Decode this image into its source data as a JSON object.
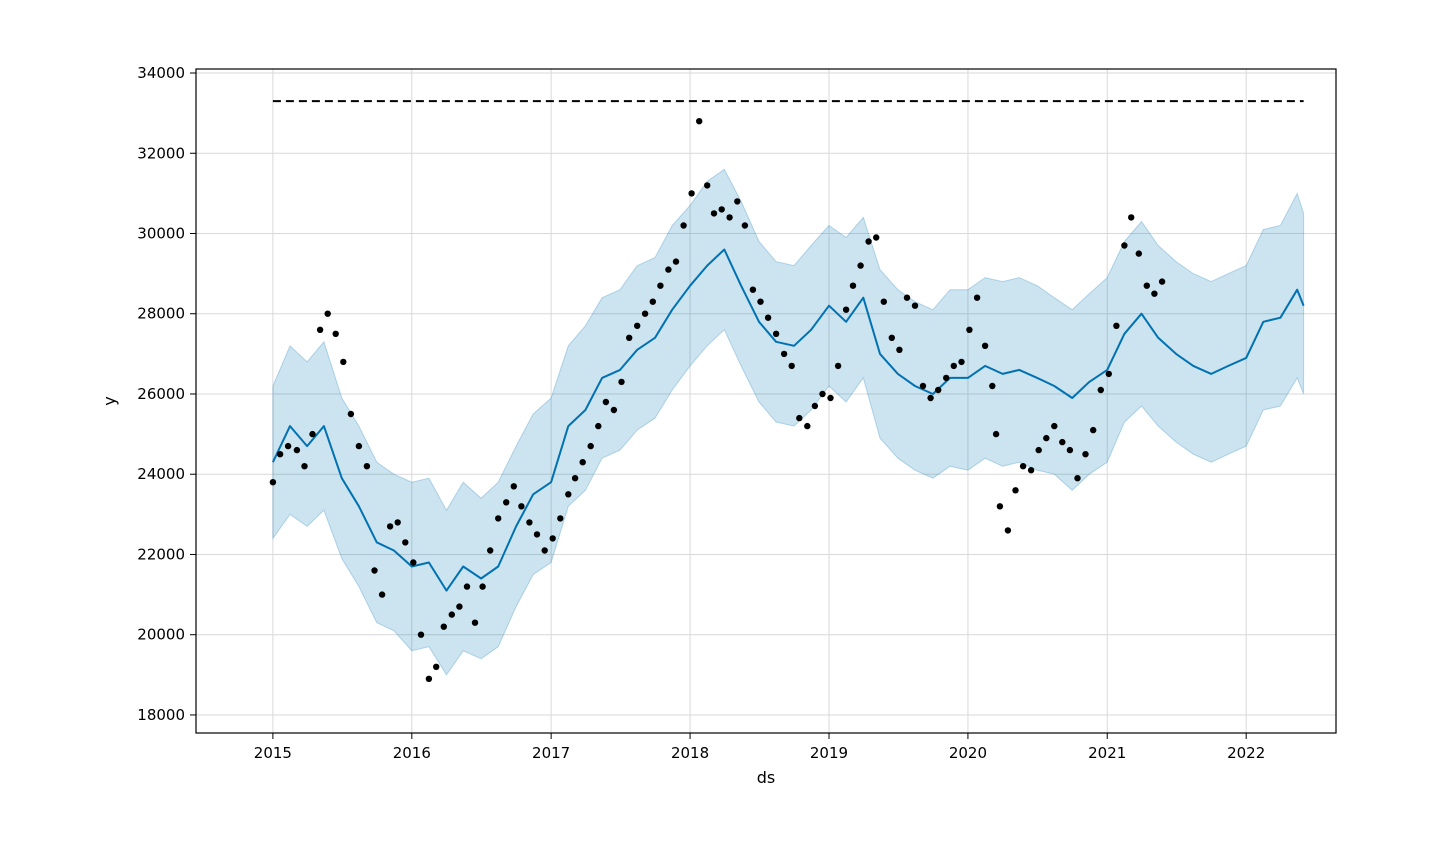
{
  "chart_data": {
    "type": "line",
    "title": "",
    "xlabel": "ds",
    "ylabel": "y",
    "xlim": [
      "2014-06-13",
      "2022-08-25"
    ],
    "ylim": [
      17550,
      34100
    ],
    "x_ticks": [
      "2015",
      "2016",
      "2017",
      "2018",
      "2019",
      "2020",
      "2021",
      "2022"
    ],
    "y_ticks": [
      18000,
      20000,
      22000,
      24000,
      26000,
      28000,
      30000,
      32000,
      34000
    ],
    "grid": true,
    "cap": {
      "value": 33300,
      "x_start": "2015-01-01",
      "x_end": "2022-06-01",
      "style": "dashed",
      "color": "#000000"
    },
    "colors": {
      "forecast_line": "#0072b2",
      "uncertainty_band": "#0072b2",
      "observed_points": "#000000"
    },
    "forecast": {
      "name": "yhat",
      "x": [
        "2015-01-01",
        "2015-02-15",
        "2015-04-01",
        "2015-05-15",
        "2015-07-01",
        "2015-08-15",
        "2015-10-01",
        "2015-11-15",
        "2016-01-01",
        "2016-02-15",
        "2016-04-01",
        "2016-05-15",
        "2016-07-01",
        "2016-08-15",
        "2016-10-01",
        "2016-11-15",
        "2017-01-01",
        "2017-02-15",
        "2017-04-01",
        "2017-05-15",
        "2017-07-01",
        "2017-08-15",
        "2017-10-01",
        "2017-11-15",
        "2018-01-01",
        "2018-02-15",
        "2018-04-01",
        "2018-05-15",
        "2018-07-01",
        "2018-08-15",
        "2018-10-01",
        "2018-11-15",
        "2019-01-01",
        "2019-02-15",
        "2019-04-01",
        "2019-05-15",
        "2019-07-01",
        "2019-08-15",
        "2019-10-01",
        "2019-11-15",
        "2020-01-01",
        "2020-02-15",
        "2020-04-01",
        "2020-05-15",
        "2020-07-01",
        "2020-08-15",
        "2020-10-01",
        "2020-11-15",
        "2021-01-01",
        "2021-02-15",
        "2021-04-01",
        "2021-05-15",
        "2021-07-01",
        "2021-08-15",
        "2021-10-01",
        "2021-11-15",
        "2022-01-01",
        "2022-02-15",
        "2022-04-01",
        "2022-05-15",
        "2022-06-01"
      ],
      "yhat": [
        24300,
        25200,
        24700,
        25200,
        23900,
        23200,
        22300,
        22100,
        21700,
        21800,
        21100,
        21700,
        21400,
        21700,
        22700,
        23500,
        23800,
        25200,
        25600,
        26400,
        26600,
        27100,
        27400,
        28100,
        28700,
        29200,
        29600,
        28700,
        27800,
        27300,
        27200,
        27600,
        28200,
        27800,
        28400,
        27000,
        26500,
        26200,
        26000,
        26400,
        26400,
        26700,
        26500,
        26600,
        26400,
        26200,
        25900,
        26300,
        26600,
        27500,
        28000,
        27400,
        27000,
        26700,
        26500,
        26700,
        26900,
        27800,
        27900,
        28600,
        28200
      ],
      "yhat_lower": [
        22400,
        23000,
        22700,
        23100,
        21900,
        21200,
        20300,
        20100,
        19600,
        19700,
        19000,
        19600,
        19400,
        19700,
        20700,
        21500,
        21800,
        23200,
        23600,
        24400,
        24600,
        25100,
        25400,
        26100,
        26700,
        27200,
        27600,
        26700,
        25800,
        25300,
        25200,
        25600,
        26200,
        25800,
        26400,
        24900,
        24400,
        24100,
        23900,
        24200,
        24100,
        24400,
        24200,
        24300,
        24100,
        24000,
        23600,
        24000,
        24300,
        25300,
        25700,
        25200,
        24800,
        24500,
        24300,
        24500,
        24700,
        25600,
        25700,
        26400,
        26000
      ],
      "yhat_upper": [
        26200,
        27200,
        26800,
        27300,
        25900,
        25200,
        24300,
        24000,
        23800,
        23900,
        23100,
        23800,
        23400,
        23800,
        24700,
        25500,
        25900,
        27200,
        27700,
        28400,
        28600,
        29200,
        29400,
        30200,
        30700,
        31300,
        31600,
        30800,
        29800,
        29300,
        29200,
        29700,
        30200,
        29900,
        30400,
        29100,
        28600,
        28300,
        28100,
        28600,
        28600,
        28900,
        28800,
        28900,
        28700,
        28400,
        28100,
        28500,
        28900,
        29800,
        30300,
        29700,
        29300,
        29000,
        28800,
        29000,
        29200,
        30100,
        30200,
        31000,
        30500
      ]
    },
    "observed": {
      "name": "y",
      "x": [
        "2015-01-01",
        "2015-01-20",
        "2015-02-10",
        "2015-03-05",
        "2015-03-25",
        "2015-04-15",
        "2015-05-05",
        "2015-05-25",
        "2015-06-15",
        "2015-07-05",
        "2015-07-25",
        "2015-08-15",
        "2015-09-05",
        "2015-09-25",
        "2015-10-15",
        "2015-11-05",
        "2015-11-25",
        "2015-12-15",
        "2016-01-05",
        "2016-01-25",
        "2016-02-15",
        "2016-03-05",
        "2016-03-25",
        "2016-04-15",
        "2016-05-05",
        "2016-05-25",
        "2016-06-15",
        "2016-07-05",
        "2016-07-25",
        "2016-08-15",
        "2016-09-05",
        "2016-09-25",
        "2016-10-15",
        "2016-11-05",
        "2016-11-25",
        "2016-12-15",
        "2017-01-05",
        "2017-01-25",
        "2017-02-15",
        "2017-03-05",
        "2017-03-25",
        "2017-04-15",
        "2017-05-05",
        "2017-05-25",
        "2017-06-15",
        "2017-07-05",
        "2017-07-25",
        "2017-08-15",
        "2017-09-05",
        "2017-09-25",
        "2017-10-15",
        "2017-11-05",
        "2017-11-25",
        "2017-12-15",
        "2018-01-05",
        "2018-01-25",
        "2018-02-15",
        "2018-03-05",
        "2018-03-25",
        "2018-04-15",
        "2018-05-05",
        "2018-05-25",
        "2018-06-15",
        "2018-07-05",
        "2018-07-25",
        "2018-08-15",
        "2018-09-05",
        "2018-09-25",
        "2018-10-15",
        "2018-11-05",
        "2018-11-25",
        "2018-12-15",
        "2019-01-05",
        "2019-01-25",
        "2019-02-15",
        "2019-03-05",
        "2019-03-25",
        "2019-04-15",
        "2019-05-05",
        "2019-05-25",
        "2019-06-15",
        "2019-07-05",
        "2019-07-25",
        "2019-08-15",
        "2019-09-05",
        "2019-09-25",
        "2019-10-15",
        "2019-11-05",
        "2019-11-25",
        "2019-12-15",
        "2020-01-05",
        "2020-01-25",
        "2020-02-15",
        "2020-03-05",
        "2020-03-15",
        "2020-03-25",
        "2020-04-15",
        "2020-05-05",
        "2020-05-25",
        "2020-06-15",
        "2020-07-05",
        "2020-07-25",
        "2020-08-15",
        "2020-09-05",
        "2020-09-25",
        "2020-10-15",
        "2020-11-05",
        "2020-11-25",
        "2020-12-15",
        "2021-01-05",
        "2021-01-25",
        "2021-02-15",
        "2021-03-05",
        "2021-03-25",
        "2021-04-15",
        "2021-05-05",
        "2021-05-25"
      ],
      "y": [
        23800,
        24500,
        24700,
        24600,
        24200,
        25000,
        27600,
        28000,
        27500,
        26800,
        25500,
        24700,
        24200,
        21600,
        21000,
        22700,
        22800,
        22300,
        21800,
        20000,
        18900,
        19200,
        20200,
        20500,
        20700,
        21200,
        20300,
        21200,
        22100,
        22900,
        23300,
        23700,
        23200,
        22800,
        22500,
        22100,
        22400,
        22900,
        23500,
        23900,
        24300,
        24700,
        25200,
        25800,
        25600,
        26300,
        27400,
        27700,
        28000,
        28300,
        28700,
        29100,
        29300,
        30200,
        31000,
        32800,
        31200,
        30500,
        30600,
        30400,
        30800,
        30200,
        28600,
        28300,
        27900,
        27500,
        27000,
        26700,
        25400,
        25200,
        25700,
        26000,
        25900,
        26700,
        28100,
        28700,
        29200,
        29800,
        29900,
        28300,
        27400,
        27100,
        28400,
        28200,
        26200,
        25900,
        26100,
        26400,
        26700,
        26800,
        27600,
        28400,
        27200,
        26200,
        25000,
        23200,
        22600,
        23600,
        24200,
        24100,
        24600,
        24900,
        25200,
        24800,
        24600,
        23900,
        24500,
        25100,
        26100,
        26500,
        27700,
        29700,
        30400,
        29500,
        28700,
        28500,
        28800
      ]
    }
  }
}
